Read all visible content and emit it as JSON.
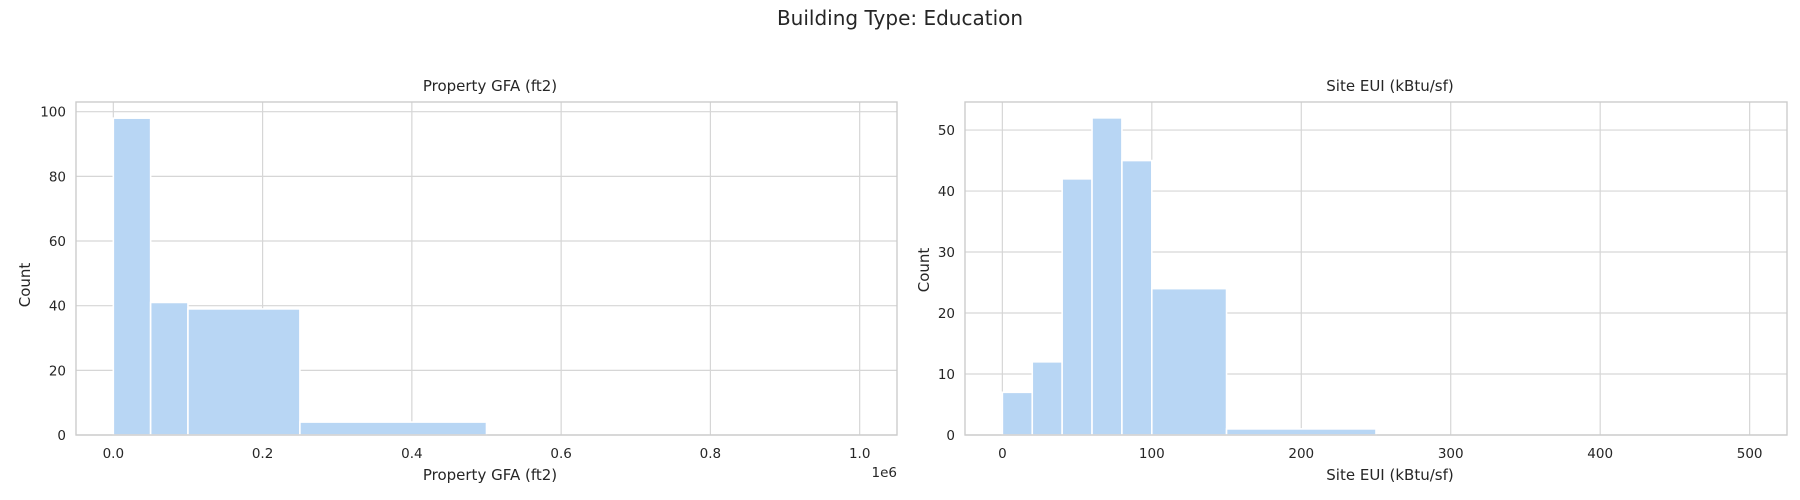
{
  "figure": {
    "suptitle": "Building Type: Education"
  },
  "chart_data": [
    {
      "type": "bar",
      "subtype": "histogram",
      "title": "Property GFA (ft2)",
      "xlabel": "Property GFA (ft2)",
      "ylabel": "Count",
      "x_offset_label": "1e6",
      "x_scale_factor": 1000000,
      "xlim": [
        -0.05,
        1.05
      ],
      "ylim": [
        0,
        103
      ],
      "xticks": [
        0.0,
        0.2,
        0.4,
        0.6,
        0.8,
        1.0
      ],
      "xtick_labels": [
        "0.0",
        "0.2",
        "0.4",
        "0.6",
        "0.8",
        "1.0"
      ],
      "yticks": [
        0,
        20,
        40,
        60,
        80,
        100
      ],
      "grid": true,
      "bar_color": "#b8d6f4",
      "bins": [
        {
          "x0": 0.0,
          "x1": 0.05,
          "count": 98
        },
        {
          "x0": 0.05,
          "x1": 0.1,
          "count": 41
        },
        {
          "x0": 0.1,
          "x1": 0.25,
          "count": 39
        },
        {
          "x0": 0.25,
          "x1": 0.5,
          "count": 4
        },
        {
          "x0": 0.5,
          "x1": 1.0,
          "count": 0
        }
      ]
    },
    {
      "type": "bar",
      "subtype": "histogram",
      "title": "Site EUI (kBtu/sf)",
      "xlabel": "Site EUI (kBtu/sf)",
      "ylabel": "Count",
      "xlim": [
        -25,
        525
      ],
      "ylim": [
        0,
        54.6
      ],
      "xticks": [
        0,
        100,
        200,
        300,
        400,
        500
      ],
      "xtick_labels": [
        "0",
        "100",
        "200",
        "300",
        "400",
        "500"
      ],
      "yticks": [
        0,
        10,
        20,
        30,
        40,
        50
      ],
      "grid": true,
      "bar_color": "#b8d6f4",
      "bins": [
        {
          "x0": 0,
          "x1": 20,
          "count": 7
        },
        {
          "x0": 20,
          "x1": 40,
          "count": 12
        },
        {
          "x0": 40,
          "x1": 60,
          "count": 42
        },
        {
          "x0": 60,
          "x1": 80,
          "count": 52
        },
        {
          "x0": 80,
          "x1": 100,
          "count": 45
        },
        {
          "x0": 100,
          "x1": 150,
          "count": 24
        },
        {
          "x0": 150,
          "x1": 250,
          "count": 1
        },
        {
          "x0": 250,
          "x1": 500,
          "count": 0
        }
      ]
    }
  ]
}
